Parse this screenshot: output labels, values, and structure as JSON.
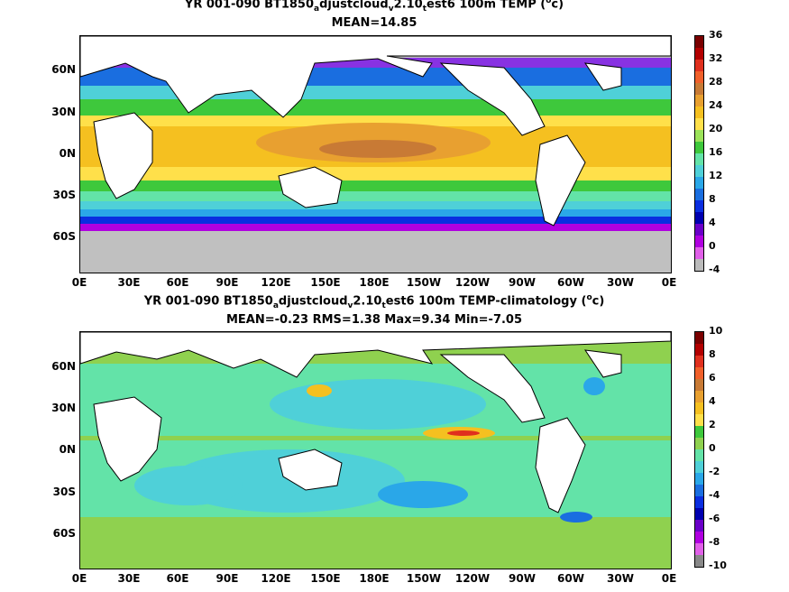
{
  "chart_data": [
    {
      "type": "heatmap",
      "title_parts": [
        "YR 001-090 BT1850",
        "a",
        "djustcloud",
        "v",
        "2.10",
        "t",
        "est6 100m TEMP (",
        "o",
        "c)"
      ],
      "subtitle": "MEAN=14.85",
      "y_tick_labels": [
        "60N",
        "30N",
        "0N",
        "30S",
        "60S"
      ],
      "x_tick_labels": [
        "0E",
        "30E",
        "60E",
        "90E",
        "120E",
        "150E",
        "180E",
        "150W",
        "120W",
        "90W",
        "60W",
        "30W",
        "0E"
      ],
      "colorbar": {
        "labels": [
          "36",
          "32",
          "28",
          "24",
          "20",
          "16",
          "12",
          "8",
          "4",
          "0",
          "-4"
        ],
        "colors": [
          "#7a0000",
          "#b30000",
          "#e0301e",
          "#f0602a",
          "#c87a35",
          "#e8a030",
          "#f5c020",
          "#ffe04a",
          "#9ce35a",
          "#3ec83c",
          "#63e3a8",
          "#4fd0d8",
          "#2aa7e8",
          "#1a6ee0",
          "#0a2ee0",
          "#0000b0",
          "#6a00c8",
          "#b000e0",
          "#e060e8",
          "#bbbbbb"
        ]
      },
      "mean": 14.85
    },
    {
      "type": "heatmap",
      "title_parts": [
        "YR 001-090 BT1850",
        "a",
        "djustcloud",
        "v",
        "2.10",
        "t",
        "est6 100m TEMP-climatology (",
        "o",
        "c)"
      ],
      "subtitle": "MEAN=-0.23   RMS=1.38   Max=9.34   Min=-7.05",
      "y_tick_labels": [
        "60N",
        "30N",
        "0N",
        "30S",
        "60S"
      ],
      "x_tick_labels": [
        "0E",
        "30E",
        "60E",
        "90E",
        "120E",
        "150E",
        "180E",
        "150W",
        "120W",
        "90W",
        "60W",
        "30W",
        "0E"
      ],
      "colorbar": {
        "labels": [
          "10",
          "8",
          "6",
          "4",
          "2",
          "0",
          "-2",
          "-4",
          "-6",
          "-8",
          "-10"
        ],
        "colors": [
          "#7a0000",
          "#b30000",
          "#e0301e",
          "#f0602a",
          "#c87a35",
          "#e8a030",
          "#f5c020",
          "#ffe04a",
          "#3ec83c",
          "#8fd14f",
          "#63e3a8",
          "#4fd0d8",
          "#2aa7e8",
          "#1a6ee0",
          "#0a2ee0",
          "#0000b0",
          "#6a00c8",
          "#b000e0",
          "#e060e8",
          "#888888"
        ]
      },
      "stats": {
        "mean": -0.23,
        "rms": 1.38,
        "max": 9.34,
        "min": -7.05
      }
    }
  ]
}
